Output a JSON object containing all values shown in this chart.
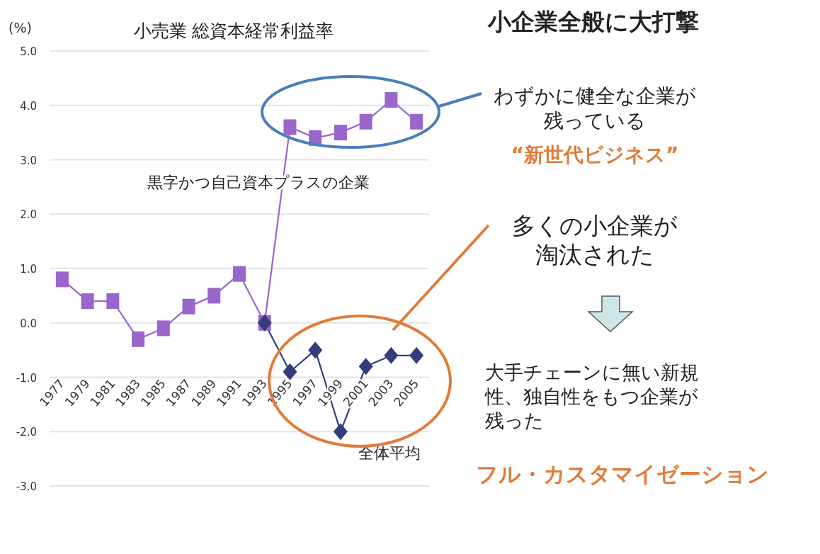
{
  "chart_data": {
    "type": "line",
    "title": "小売業 総資本経常利益率",
    "ylabel": "(%)",
    "categories": [
      "1977",
      "1979",
      "1981",
      "1983",
      "1985",
      "1987",
      "1989",
      "1991",
      "1993",
      "1995",
      "1997",
      "1999",
      "2001",
      "2003",
      "2005"
    ],
    "series": [
      {
        "name": "黒字かつ自己資本プラスの企業",
        "color": "#9966cc",
        "marker": "square",
        "values": [
          0.8,
          0.4,
          0.4,
          -0.3,
          -0.1,
          0.3,
          0.5,
          0.9,
          0.0,
          3.6,
          3.4,
          3.5,
          3.7,
          4.1,
          3.7
        ]
      },
      {
        "name": "全体平均",
        "color": "#333d7a",
        "marker": "diamond",
        "values": [
          null,
          null,
          null,
          null,
          null,
          null,
          null,
          null,
          0.0,
          -0.9,
          -0.5,
          -2.0,
          -0.8,
          -0.6,
          -0.6
        ]
      }
    ],
    "ylim": [
      -3,
      5
    ],
    "yticks": [
      {
        "value": 5,
        "label": "5.0"
      },
      {
        "value": 4,
        "label": "4.0"
      },
      {
        "value": 3,
        "label": "3.0"
      },
      {
        "value": 2,
        "label": "2.0"
      },
      {
        "value": 1,
        "label": "1.0"
      },
      {
        "value": 0,
        "label": "0.0"
      },
      {
        "value": -1,
        "label": "-1.0"
      },
      {
        "value": -2,
        "label": "-2.0"
      },
      {
        "value": -3,
        "label": "-3.0"
      }
    ],
    "grid": "y",
    "legend": false,
    "annotations": [
      "小企業全般に大打撃",
      "わずかに健全な企業が残っている",
      "“新世代ビジネス”",
      "多くの小企業が淘汰された",
      "大手チェーンに無い新規性、独自性をもつ企業が残った",
      "フル・カスタマイゼーション"
    ]
  }
}
